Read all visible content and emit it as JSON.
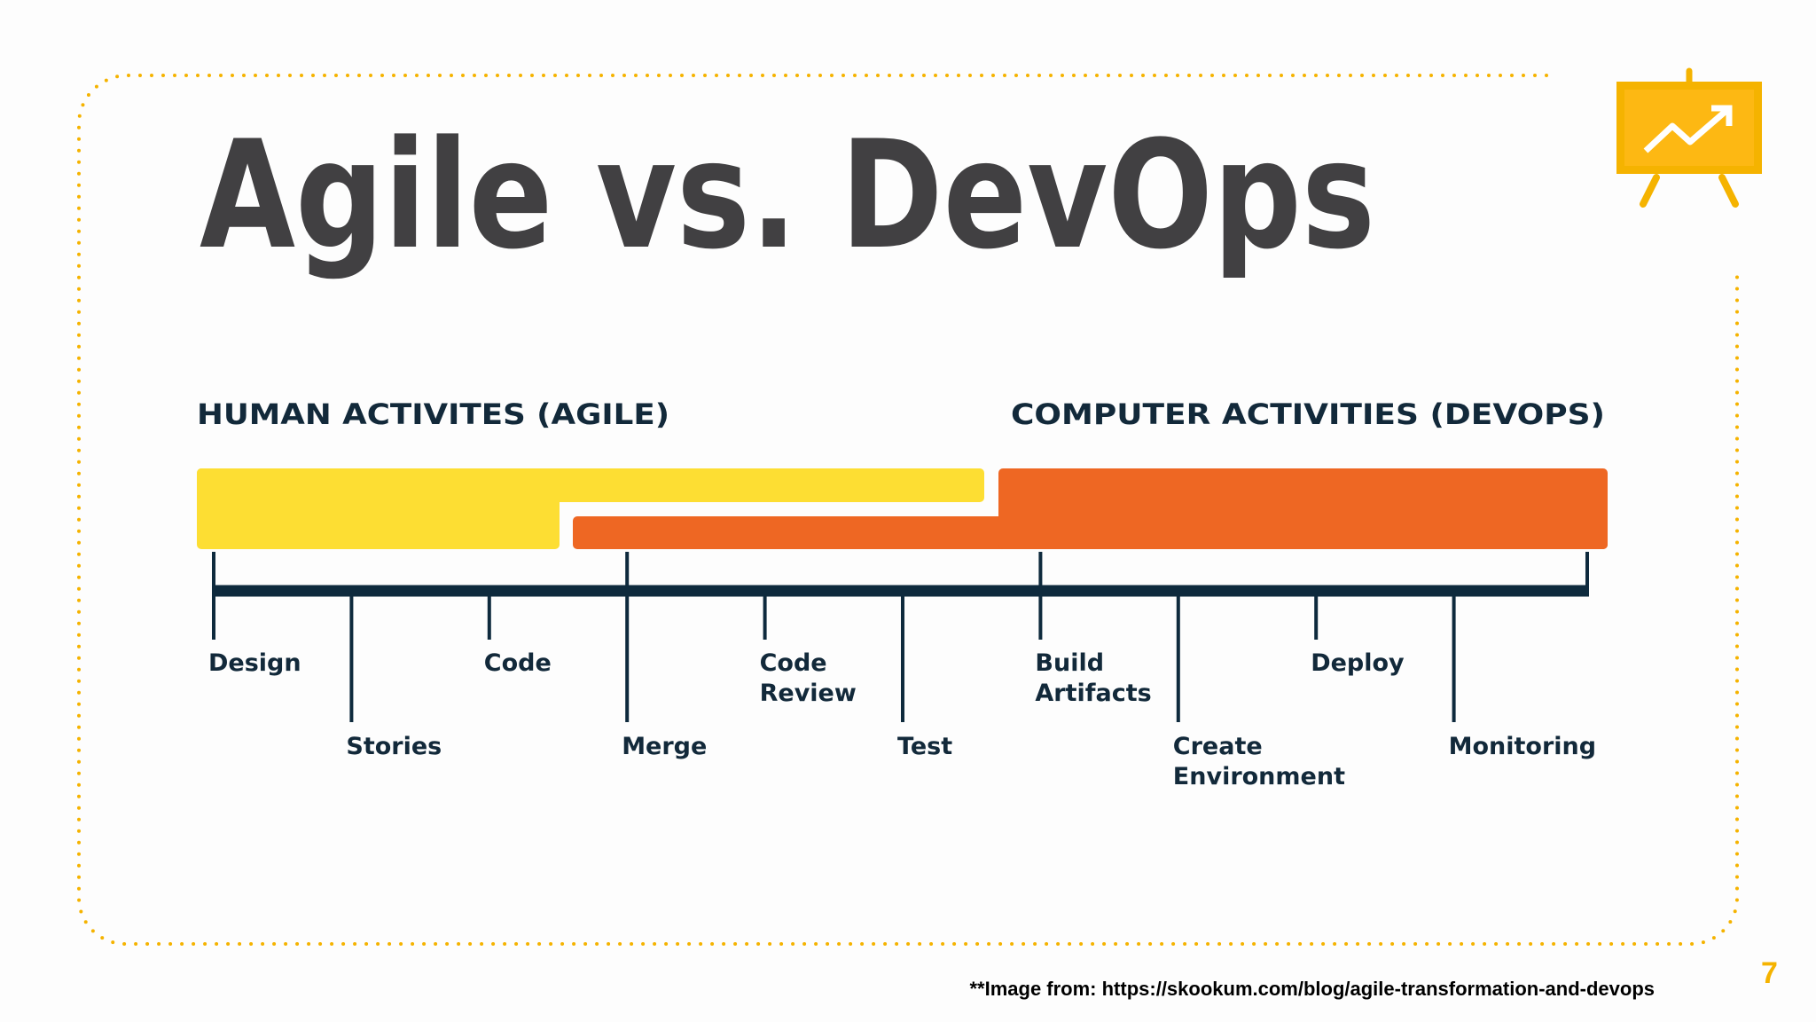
{
  "title": "Agile vs. DevOps",
  "sections": {
    "human": "HUMAN ACTIVITES (AGILE)",
    "computer": "COMPUTER ACTIVITIES (DEVOPS)"
  },
  "steps": [
    {
      "lines": [
        "Design"
      ]
    },
    {
      "lines": [
        "Stories"
      ]
    },
    {
      "lines": [
        "Code"
      ]
    },
    {
      "lines": [
        "Merge"
      ]
    },
    {
      "lines": [
        "Code",
        "Review"
      ]
    },
    {
      "lines": [
        "Test"
      ]
    },
    {
      "lines": [
        "Build",
        "Artifacts"
      ]
    },
    {
      "lines": [
        "Create",
        "Environment"
      ]
    },
    {
      "lines": [
        "Deploy"
      ]
    },
    {
      "lines": [
        "Monitoring"
      ]
    }
  ],
  "footnote": "**Image from: https://skookum.com/blog/agile-transformation-and-devops",
  "page_number": "7"
}
